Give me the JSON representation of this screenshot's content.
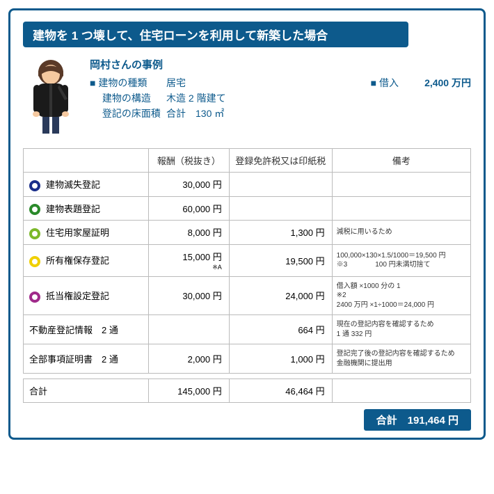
{
  "title": "建物を 1 つ壊して、住宅ローンを利用して新築した場合",
  "case": {
    "title": "岡村さんの事例",
    "rows": [
      {
        "label": "■ 建物の種類",
        "value": "居宅"
      },
      {
        "label": "　 建物の構造",
        "value": "木造 2 階建て"
      },
      {
        "label": "　 登記の床面積",
        "value": "合計　130 ㎡"
      }
    ],
    "loan_label": "■ 借入",
    "loan_value": "2,400 万円"
  },
  "columns": [
    "",
    "報酬（税抜き）",
    "登録免許税又は印紙税",
    "備考"
  ],
  "rows": [
    {
      "circle": "#1a2e8a",
      "name": "建物滅失登記",
      "fee": "30,000 円",
      "tax": "",
      "note": ""
    },
    {
      "circle": "#2a8a2a",
      "name": "建物表題登記",
      "fee": "60,000 円",
      "tax": "",
      "note": ""
    },
    {
      "circle": "#7cb82a",
      "name": "住宅用家屋証明",
      "fee": "8,000 円",
      "tax": "1,300 円",
      "note": "減税に用いるため"
    },
    {
      "circle": "#f0d000",
      "name": "所有権保存登記",
      "fee": "15,000 円",
      "fee_note": "※A",
      "tax": "19,500 円",
      "note": "100,000×130×1.5/1000＝19,500 円\n※3　　　　100 円未満切捨て"
    },
    {
      "circle": "#a02a8a",
      "name": "抵当権設定登記",
      "fee": "30,000 円",
      "tax": "24,000 円",
      "note": "借入額 ×1000 分の 1\n※2\n2400 万円 ×1÷1000＝24,000 円"
    },
    {
      "circle": null,
      "indent": true,
      "name": "不動産登記情報　2 通",
      "fee": "",
      "tax": "664 円",
      "note": "現在の登記内容を確認するため\n1 通 332 円"
    },
    {
      "circle": null,
      "indent": true,
      "name": "全部事項証明書　2 通",
      "fee": "2,000 円",
      "tax": "1,000 円",
      "note": "登記完了後の登記内容を確認するため　金融機関に提出用"
    }
  ],
  "total": {
    "label": "合計",
    "fee": "145,000 円",
    "tax": "46,464 円"
  },
  "grand": {
    "label": "合計",
    "value": "191,464 円"
  },
  "colors": {
    "primary": "#0d5a8c",
    "circles": [
      "#1a2e8a",
      "#2a8a2a",
      "#7cb82a",
      "#f0d000",
      "#a02a8a"
    ]
  }
}
